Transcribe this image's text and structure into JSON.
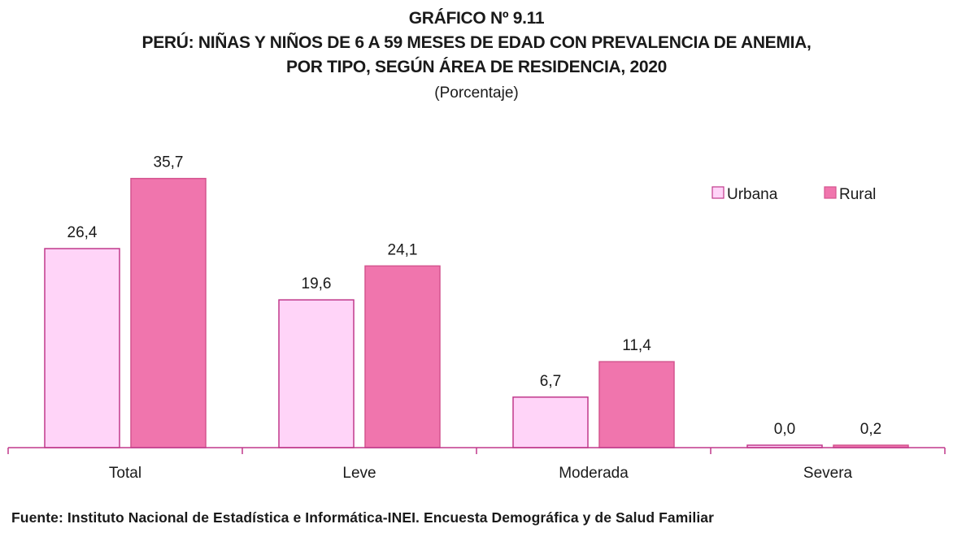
{
  "figure_number": "GRÁFICO Nº 9.11",
  "title_line1": "PERÚ: NIÑAS Y NIÑOS DE 6 A 59 MESES DE EDAD CON PREVALENCIA DE ANEMIA,",
  "title_line2": "POR TIPO, SEGÚN ÁREA DE RESIDENCIA, 2020",
  "subtitle": "(Porcentaje)",
  "source": "Fuente: Instituto Nacional de Estadística e Informática-INEI. Encuesta Demográfica y de Salud Familiar",
  "chart_data": {
    "type": "bar",
    "categories": [
      "Total",
      "Leve",
      "Moderada",
      "Severa"
    ],
    "series": [
      {
        "name": "Urbana",
        "values": [
          26.4,
          19.6,
          6.7,
          0.0
        ],
        "labels": [
          "26,4",
          "19,6",
          "6,7",
          "0,0"
        ],
        "color": "#ffd4f8",
        "stroke": "#c0398b"
      },
      {
        "name": "Rural",
        "values": [
          35.7,
          24.1,
          11.4,
          0.2
        ],
        "labels": [
          "35,7",
          "24,1",
          "11,4",
          "0,2"
        ],
        "color": "#f075ad",
        "stroke": "#d4558f"
      }
    ],
    "ylim": [
      0,
      40
    ],
    "legend_position": "top-right",
    "grid": false
  }
}
